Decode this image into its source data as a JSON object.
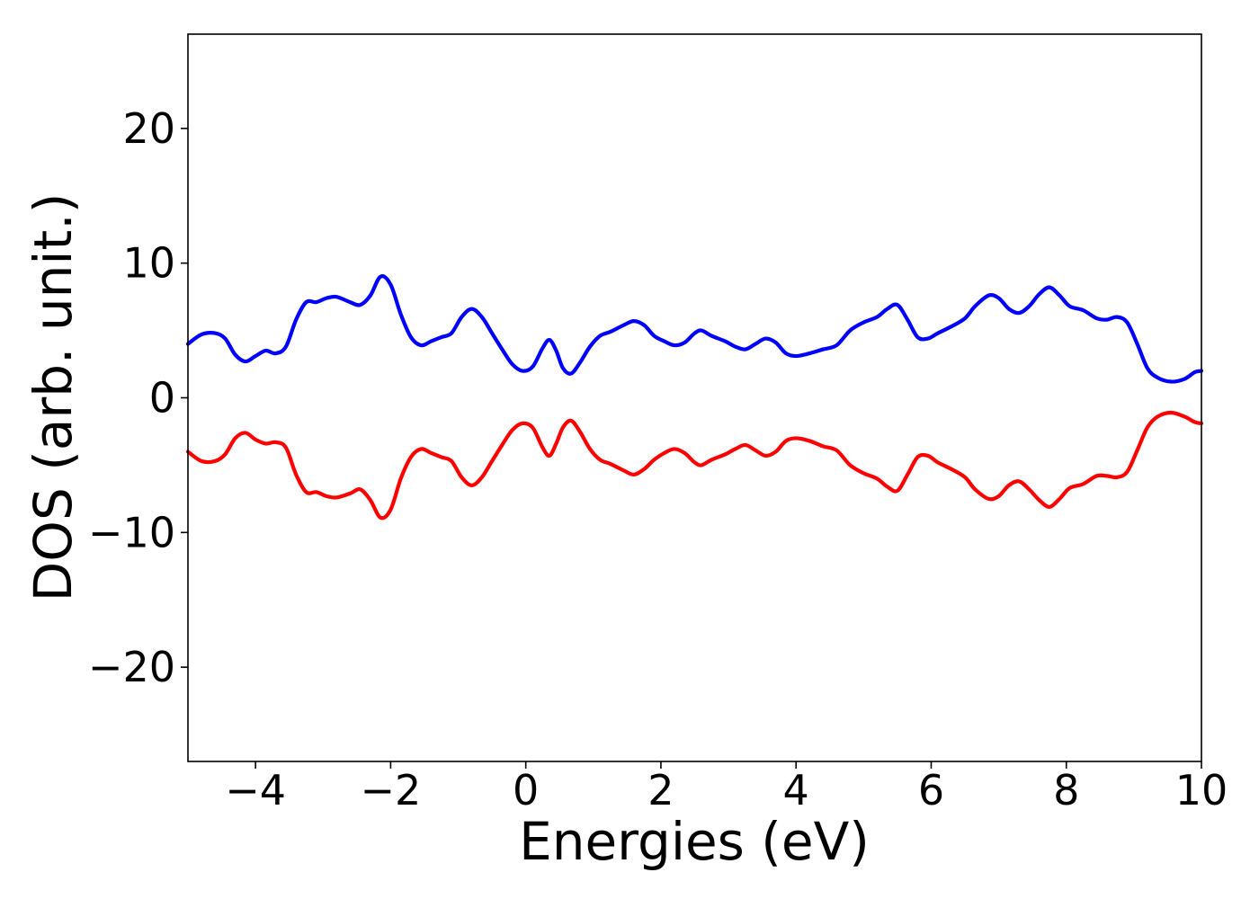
{
  "chart_data": {
    "type": "line",
    "title": "",
    "xlabel": "Energies (eV)",
    "ylabel": "DOS (arb. unit.)",
    "xlim": [
      -5,
      10
    ],
    "ylim": [
      -27,
      27
    ],
    "x_ticks": [
      -4,
      -2,
      0,
      2,
      4,
      6,
      8,
      10
    ],
    "x_tick_labels": [
      "−4",
      "−2",
      "0",
      "2",
      "4",
      "6",
      "8",
      "10"
    ],
    "y_ticks": [
      -20,
      -10,
      0,
      10,
      20
    ],
    "y_tick_labels": [
      "−20",
      "−10",
      "0",
      "10",
      "20"
    ],
    "grid": false,
    "legend": "none",
    "series": [
      {
        "color": "#0000ff",
        "points": [
          [
            -5.0,
            4.0
          ],
          [
            -4.8,
            4.7
          ],
          [
            -4.6,
            4.8
          ],
          [
            -4.45,
            4.4
          ],
          [
            -4.3,
            3.2
          ],
          [
            -4.15,
            2.7
          ],
          [
            -4.0,
            3.1
          ],
          [
            -3.85,
            3.5
          ],
          [
            -3.7,
            3.3
          ],
          [
            -3.55,
            3.8
          ],
          [
            -3.4,
            5.8
          ],
          [
            -3.25,
            7.1
          ],
          [
            -3.1,
            7.1
          ],
          [
            -2.95,
            7.4
          ],
          [
            -2.8,
            7.5
          ],
          [
            -2.6,
            7.1
          ],
          [
            -2.45,
            6.9
          ],
          [
            -2.3,
            7.6
          ],
          [
            -2.15,
            9.0
          ],
          [
            -2.0,
            8.4
          ],
          [
            -1.85,
            6.2
          ],
          [
            -1.7,
            4.5
          ],
          [
            -1.55,
            3.9
          ],
          [
            -1.4,
            4.2
          ],
          [
            -1.25,
            4.5
          ],
          [
            -1.1,
            4.8
          ],
          [
            -0.95,
            6.0
          ],
          [
            -0.8,
            6.6
          ],
          [
            -0.65,
            6.0
          ],
          [
            -0.5,
            4.8
          ],
          [
            -0.35,
            3.6
          ],
          [
            -0.2,
            2.5
          ],
          [
            -0.05,
            2.0
          ],
          [
            0.1,
            2.3
          ],
          [
            0.25,
            3.7
          ],
          [
            0.35,
            4.3
          ],
          [
            0.45,
            3.5
          ],
          [
            0.55,
            2.2
          ],
          [
            0.67,
            1.8
          ],
          [
            0.8,
            2.6
          ],
          [
            0.95,
            3.8
          ],
          [
            1.1,
            4.6
          ],
          [
            1.25,
            4.9
          ],
          [
            1.45,
            5.4
          ],
          [
            1.6,
            5.7
          ],
          [
            1.75,
            5.4
          ],
          [
            1.9,
            4.6
          ],
          [
            2.05,
            4.2
          ],
          [
            2.2,
            3.9
          ],
          [
            2.35,
            4.1
          ],
          [
            2.5,
            4.8
          ],
          [
            2.6,
            5.0
          ],
          [
            2.75,
            4.6
          ],
          [
            2.95,
            4.2
          ],
          [
            3.1,
            3.8
          ],
          [
            3.25,
            3.6
          ],
          [
            3.4,
            4.0
          ],
          [
            3.55,
            4.4
          ],
          [
            3.7,
            4.1
          ],
          [
            3.85,
            3.3
          ],
          [
            4.0,
            3.1
          ],
          [
            4.2,
            3.3
          ],
          [
            4.4,
            3.6
          ],
          [
            4.6,
            3.9
          ],
          [
            4.8,
            5.0
          ],
          [
            5.0,
            5.6
          ],
          [
            5.2,
            6.0
          ],
          [
            5.35,
            6.6
          ],
          [
            5.5,
            6.9
          ],
          [
            5.65,
            5.8
          ],
          [
            5.8,
            4.5
          ],
          [
            5.95,
            4.4
          ],
          [
            6.1,
            4.8
          ],
          [
            6.3,
            5.3
          ],
          [
            6.5,
            5.9
          ],
          [
            6.65,
            6.8
          ],
          [
            6.85,
            7.6
          ],
          [
            7.0,
            7.4
          ],
          [
            7.15,
            6.6
          ],
          [
            7.3,
            6.3
          ],
          [
            7.45,
            6.8
          ],
          [
            7.6,
            7.7
          ],
          [
            7.75,
            8.2
          ],
          [
            7.9,
            7.6
          ],
          [
            8.05,
            6.8
          ],
          [
            8.25,
            6.5
          ],
          [
            8.45,
            5.9
          ],
          [
            8.6,
            5.8
          ],
          [
            8.75,
            6.0
          ],
          [
            8.9,
            5.6
          ],
          [
            9.05,
            4.0
          ],
          [
            9.2,
            2.2
          ],
          [
            9.35,
            1.5
          ],
          [
            9.55,
            1.2
          ],
          [
            9.75,
            1.4
          ],
          [
            9.9,
            1.9
          ],
          [
            10.0,
            2.0
          ]
        ]
      },
      {
        "color": "#ff0000",
        "points": [
          [
            -5.0,
            -4.0
          ],
          [
            -4.8,
            -4.7
          ],
          [
            -4.6,
            -4.7
          ],
          [
            -4.45,
            -4.2
          ],
          [
            -4.3,
            -3.0
          ],
          [
            -4.15,
            -2.6
          ],
          [
            -4.0,
            -3.1
          ],
          [
            -3.85,
            -3.4
          ],
          [
            -3.7,
            -3.3
          ],
          [
            -3.55,
            -3.7
          ],
          [
            -3.4,
            -5.7
          ],
          [
            -3.25,
            -7.0
          ],
          [
            -3.1,
            -7.0
          ],
          [
            -2.95,
            -7.3
          ],
          [
            -2.8,
            -7.4
          ],
          [
            -2.6,
            -7.1
          ],
          [
            -2.45,
            -6.8
          ],
          [
            -2.3,
            -7.6
          ],
          [
            -2.15,
            -8.9
          ],
          [
            -2.0,
            -8.3
          ],
          [
            -1.85,
            -6.0
          ],
          [
            -1.7,
            -4.4
          ],
          [
            -1.55,
            -3.8
          ],
          [
            -1.4,
            -4.1
          ],
          [
            -1.25,
            -4.4
          ],
          [
            -1.1,
            -4.7
          ],
          [
            -0.95,
            -5.9
          ],
          [
            -0.8,
            -6.5
          ],
          [
            -0.65,
            -5.9
          ],
          [
            -0.5,
            -4.7
          ],
          [
            -0.35,
            -3.5
          ],
          [
            -0.2,
            -2.4
          ],
          [
            -0.05,
            -1.9
          ],
          [
            0.1,
            -2.2
          ],
          [
            0.25,
            -3.7
          ],
          [
            0.35,
            -4.3
          ],
          [
            0.45,
            -3.4
          ],
          [
            0.55,
            -2.2
          ],
          [
            0.67,
            -1.7
          ],
          [
            0.8,
            -2.5
          ],
          [
            0.95,
            -3.8
          ],
          [
            1.1,
            -4.6
          ],
          [
            1.25,
            -4.9
          ],
          [
            1.45,
            -5.4
          ],
          [
            1.6,
            -5.7
          ],
          [
            1.75,
            -5.3
          ],
          [
            1.9,
            -4.6
          ],
          [
            2.05,
            -4.1
          ],
          [
            2.2,
            -3.8
          ],
          [
            2.35,
            -4.1
          ],
          [
            2.5,
            -4.8
          ],
          [
            2.6,
            -5.0
          ],
          [
            2.75,
            -4.6
          ],
          [
            2.95,
            -4.2
          ],
          [
            3.1,
            -3.8
          ],
          [
            3.25,
            -3.5
          ],
          [
            3.4,
            -3.9
          ],
          [
            3.55,
            -4.3
          ],
          [
            3.7,
            -4.0
          ],
          [
            3.85,
            -3.2
          ],
          [
            4.0,
            -3.0
          ],
          [
            4.2,
            -3.2
          ],
          [
            4.4,
            -3.6
          ],
          [
            4.6,
            -3.9
          ],
          [
            4.8,
            -5.0
          ],
          [
            5.0,
            -5.6
          ],
          [
            5.2,
            -6.0
          ],
          [
            5.35,
            -6.6
          ],
          [
            5.5,
            -6.9
          ],
          [
            5.65,
            -5.7
          ],
          [
            5.8,
            -4.4
          ],
          [
            5.95,
            -4.3
          ],
          [
            6.1,
            -4.8
          ],
          [
            6.3,
            -5.3
          ],
          [
            6.5,
            -5.9
          ],
          [
            6.65,
            -6.8
          ],
          [
            6.85,
            -7.5
          ],
          [
            7.0,
            -7.3
          ],
          [
            7.15,
            -6.5
          ],
          [
            7.3,
            -6.2
          ],
          [
            7.45,
            -6.8
          ],
          [
            7.6,
            -7.6
          ],
          [
            7.75,
            -8.1
          ],
          [
            7.9,
            -7.5
          ],
          [
            8.05,
            -6.7
          ],
          [
            8.25,
            -6.4
          ],
          [
            8.45,
            -5.8
          ],
          [
            8.6,
            -5.8
          ],
          [
            8.75,
            -5.9
          ],
          [
            8.9,
            -5.5
          ],
          [
            9.05,
            -3.9
          ],
          [
            9.2,
            -2.2
          ],
          [
            9.35,
            -1.4
          ],
          [
            9.55,
            -1.1
          ],
          [
            9.75,
            -1.4
          ],
          [
            9.9,
            -1.8
          ],
          [
            10.0,
            -1.9
          ]
        ]
      }
    ]
  }
}
